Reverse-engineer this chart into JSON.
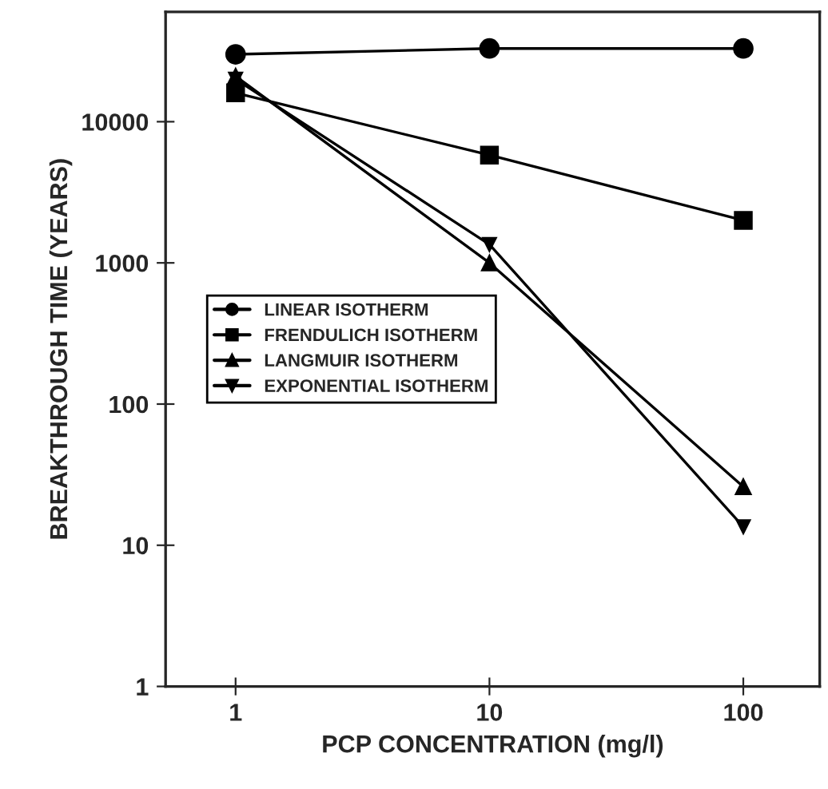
{
  "chart_data": {
    "type": "line",
    "xlabel": "PCP CONCENTRATION (mg/l)",
    "ylabel": "BREAKTHROUGH TIME (YEARS)",
    "x": [
      1,
      10,
      100
    ],
    "log": "xy",
    "xlim": [
      0.53,
      200
    ],
    "ylim": [
      1,
      60000
    ],
    "xticks": [
      1,
      10,
      100
    ],
    "yticks": [
      1,
      10,
      100,
      1000,
      10000
    ],
    "grid": false,
    "legend": "center left",
    "series": [
      {
        "name": "LINEAR ISOTHERM",
        "color": "#000000",
        "marker": "circle",
        "values": [
          30000,
          33000,
          33000
        ]
      },
      {
        "name": "FRENDULICH ISOTHERM",
        "color": "#000000",
        "marker": "square",
        "values": [
          16000,
          5800,
          2000
        ]
      },
      {
        "name": "LANGMUIR ISOTHERM",
        "color": "#000000",
        "marker": "triangle",
        "values": [
          21000,
          1000,
          26
        ]
      },
      {
        "name": "EXPONENTIAL ISOTHERM",
        "color": "#000000",
        "marker": "triangle_down",
        "values": [
          20000,
          1350,
          13.5
        ]
      }
    ]
  }
}
